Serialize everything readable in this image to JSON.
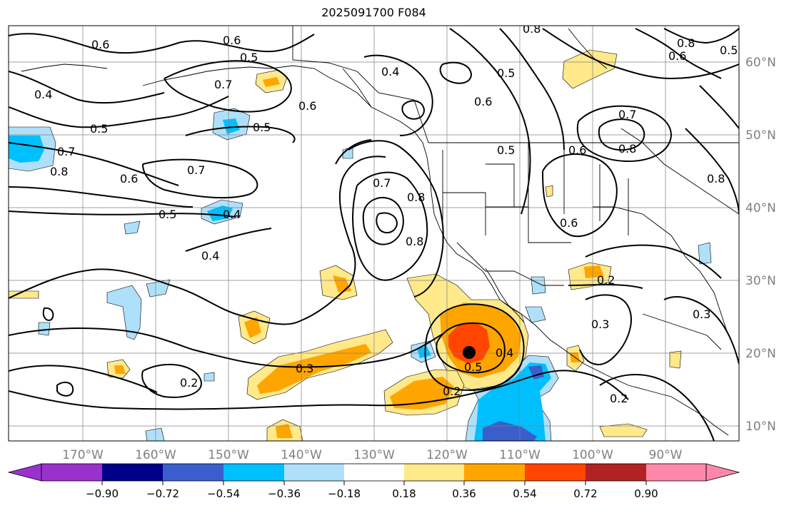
{
  "title": "2025091700 F084",
  "colors": {
    "neg_090": "#9932cc",
    "neg_072": "#00008b",
    "neg_054": "#3a5fcd",
    "neg_036": "#00bfff",
    "neg_018": "#afe0fa",
    "neutral": "#ffffff",
    "pos_018": "#ffe98a",
    "pos_036": "#ffa500",
    "pos_054": "#ff4500",
    "pos_072": "#b22222",
    "pos_090": "#ff88aa"
  },
  "longitude_labels": [
    "170°W",
    "160°W",
    "150°W",
    "140°W",
    "130°W",
    "120°W",
    "110°W",
    "100°W",
    "90°W"
  ],
  "latitude_labels": [
    "60°N",
    "50°N",
    "40°N",
    "30°N",
    "20°N",
    "10°N"
  ],
  "colorbar_ticks": [
    "−0.90",
    "−0.72",
    "−0.54",
    "−0.36",
    "−0.18",
    "0.18",
    "0.36",
    "0.54",
    "0.72",
    "0.90"
  ],
  "colorbar_levels": [
    -0.9,
    -0.72,
    -0.54,
    -0.36,
    -0.18,
    0.18,
    0.36,
    0.54,
    0.72,
    0.9
  ],
  "contour_labels": [
    "0.6",
    "0.6",
    "0.5",
    "0.4",
    "0.7",
    "0.5",
    "0.6",
    "0.5",
    "0.7",
    "0.8",
    "0.7",
    "0.6",
    "0.5",
    "0.4",
    "0.4",
    "0.7",
    "0.8",
    "0.8",
    "0.4",
    "0.5",
    "0.6",
    "0.5",
    "0.7",
    "0.8",
    "0.6",
    "0.8",
    "0.6",
    "0.6",
    "0.8",
    "0.8",
    "0.5",
    "0.2",
    "0.3",
    "0.3",
    "0.3",
    "0.4",
    "0.5",
    "0.2",
    "0.2",
    "0.2"
  ],
  "storm_marker": "storm-center"
}
